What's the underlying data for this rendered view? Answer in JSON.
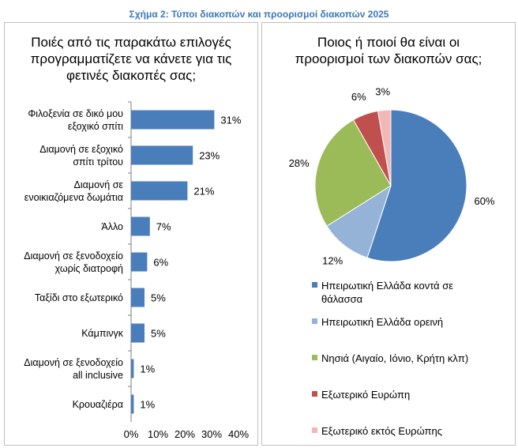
{
  "figure_title": "Σχήμα 2: Τύποι διακοπών και προορισμοί διακοπών 2025",
  "chart_data": [
    {
      "type": "bar",
      "orientation": "horizontal",
      "title_lines": [
        "Ποιές από τις παρακάτω επιλογές",
        "προγραμματίζετε να κάνετε για τις",
        "φετινές διακοπές σας;"
      ],
      "categories": [
        [
          "Φιλοξενία σε δικό μου",
          "εξοχικό σπίτι"
        ],
        [
          "Διαμονή σε εξοχικό",
          "σπίτι τρίτου"
        ],
        [
          "Διαμονή σε",
          "ενοικιαζόμενα δωμάτια"
        ],
        [
          "Άλλο"
        ],
        [
          "Διαμονή σε ξενοδοχείο",
          "χωρίς διατροφή"
        ],
        [
          "Ταξίδι στο εξωτερικό"
        ],
        [
          "Κάμπινγκ"
        ],
        [
          "Διαμονή σε ξενοδοχείο",
          "all inclusive"
        ],
        [
          "Κρουαζιέρα"
        ]
      ],
      "values": [
        31,
        23,
        21,
        7,
        6,
        5,
        5,
        1,
        1
      ],
      "data_labels": [
        "31%",
        "23%",
        "21%",
        "7%",
        "6%",
        "5%",
        "5%",
        "1%",
        "1%"
      ],
      "xlim": [
        0,
        40
      ],
      "x_ticks": [
        "0%",
        "10%",
        "20%",
        "30%",
        "40%"
      ],
      "bar_color": "#4a7ebb",
      "grid": false
    },
    {
      "type": "pie",
      "title_lines": [
        "Ποιος ή ποιοί θα είναι οι",
        "προορισμοί των διακοπών σας;"
      ],
      "legend_position": "bottom",
      "slices": [
        {
          "label_lines": [
            "Ηπειρωτική Ελλάδα κοντά σε",
            "θάλασσα"
          ],
          "value": 60,
          "data_label": "60%",
          "color": "#4a7ebb"
        },
        {
          "label_lines": [
            "Ηπειρωτική Ελλάδα ορεινή"
          ],
          "value": 12,
          "data_label": "12%",
          "color": "#95b3d7"
        },
        {
          "label_lines": [
            "Νησιά (Αιγαίο, Ιόνιο, Κρήτη κλπ)"
          ],
          "value": 28,
          "data_label": "28%",
          "color": "#9bbb59"
        },
        {
          "label_lines": [
            "Εξωτερικό Ευρώπη"
          ],
          "value": 6,
          "data_label": "6%",
          "color": "#c0504d"
        },
        {
          "label_lines": [
            "Εξωτερικό εκτός Ευρώπης"
          ],
          "value": 3,
          "data_label": "3%",
          "color": "#f2b8b8"
        }
      ]
    }
  ]
}
